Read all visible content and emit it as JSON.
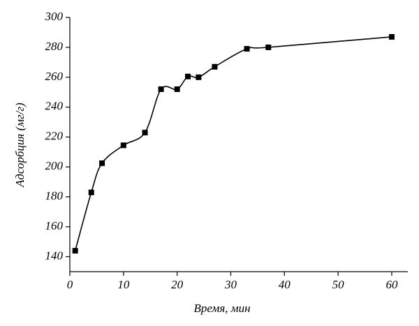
{
  "chart_data": {
    "type": "line",
    "x_label": "Время, мин",
    "y_label": "Адсорбция (мг/г)",
    "x": [
      1,
      4,
      6,
      10,
      14,
      17,
      20,
      22,
      24,
      27,
      33,
      37,
      60
    ],
    "series": [
      {
        "color": "#000000",
        "values": [
          144,
          183,
          202.5,
          214.5,
          223,
          252,
          252,
          260.5,
          260,
          267,
          279,
          280,
          287
        ]
      }
    ],
    "xlim": [
      0,
      63
    ],
    "xticks": [
      0,
      10,
      20,
      30,
      40,
      50,
      60
    ],
    "ylim": [
      130,
      300
    ],
    "yticks": [
      140,
      160,
      180,
      200,
      220,
      240,
      260,
      280,
      300
    ],
    "grid": false,
    "smooth": true,
    "markers": "square"
  }
}
